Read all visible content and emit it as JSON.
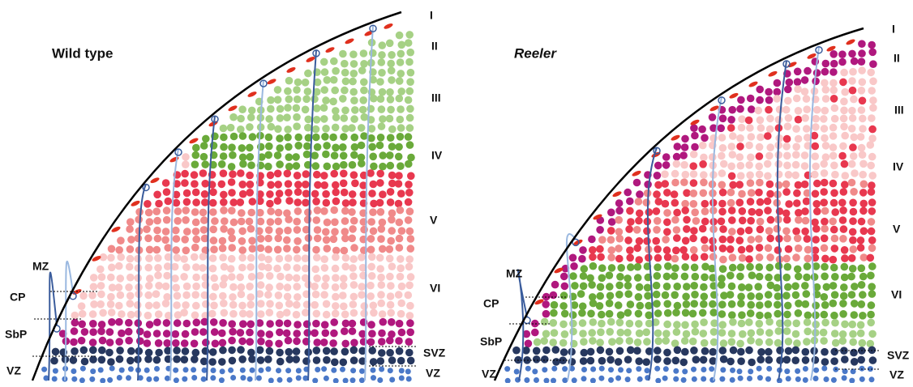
{
  "panels": [
    {
      "title": "Wild type",
      "layer_labels": [
        "I",
        "II",
        "III",
        "IV",
        "V",
        "VI",
        "SVZ",
        "VZ"
      ],
      "zone_labels": [
        "MZ",
        "CP",
        "SbP",
        "VZ"
      ]
    },
    {
      "title": "Reeler",
      "layer_labels": [
        "I",
        "II",
        "III",
        "IV",
        "V",
        "VI",
        "SVZ",
        "VZ"
      ],
      "zone_labels": [
        "MZ",
        "CP",
        "SbP",
        "VZ"
      ]
    }
  ]
}
